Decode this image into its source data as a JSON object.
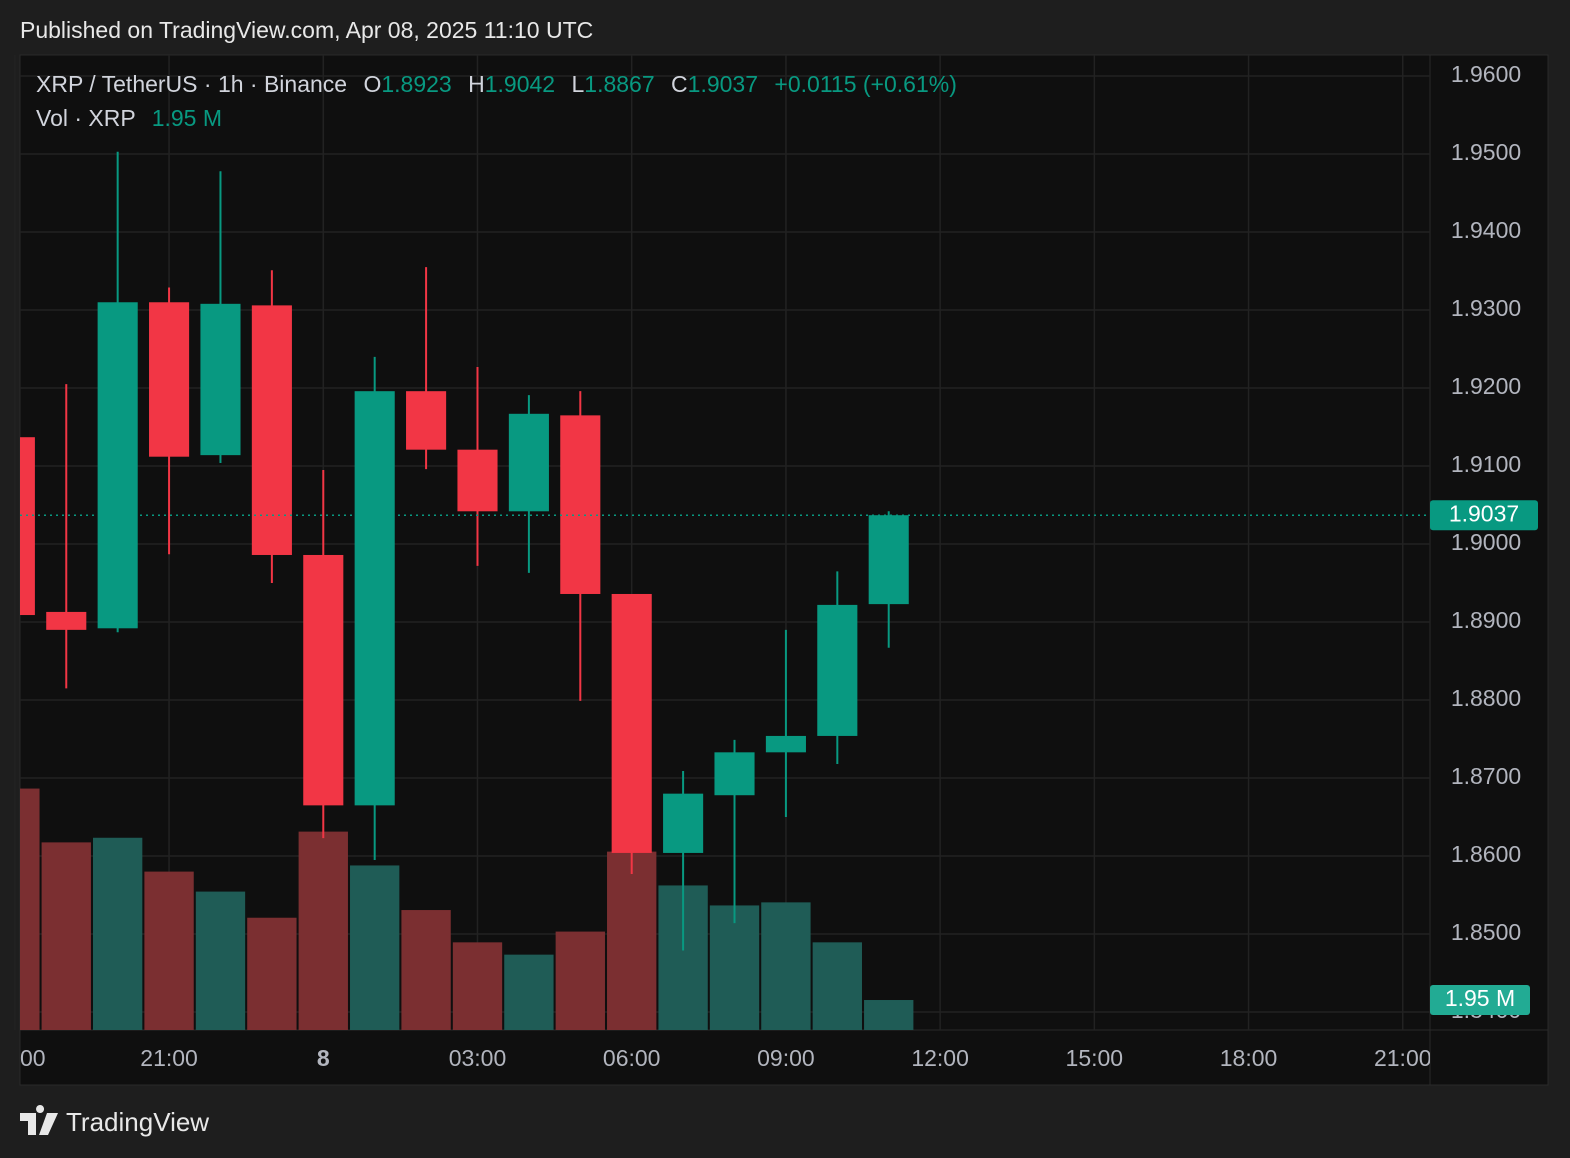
{
  "header": {
    "published": "Published on TradingView.com, Apr 08, 2025 11:10 UTC"
  },
  "footer": {
    "brand": "TradingView"
  },
  "chart_data": {
    "type": "candlestick",
    "symbol": "XRP / TetherUS · 1h · Binance",
    "ohlc_prefixes": [
      "O",
      "H",
      "L",
      "C"
    ],
    "change": "+0.0115 (+0.61%)",
    "volume_title": "Vol · XRP",
    "volume_value_label": "1.95 M",
    "up_color": "#089981",
    "down_color": "#f23645",
    "up_volume_color": "#1f5c56",
    "down_volume_color": "#7b2f31",
    "x": [
      18,
      19,
      20,
      21,
      22,
      23,
      24,
      25,
      26,
      27,
      28,
      29,
      30,
      31,
      32,
      33,
      34,
      35
    ],
    "open": [
      1.9137,
      1.8913,
      1.8892,
      1.931,
      1.9114,
      1.9306,
      1.8986,
      1.8665,
      1.9196,
      1.9121,
      1.9042,
      1.9165,
      1.8936,
      1.8604,
      1.8678,
      1.8733,
      1.8754,
      1.8923
    ],
    "high": [
      1.9137,
      1.9205,
      1.9503,
      1.9329,
      1.9478,
      1.9351,
      1.9095,
      1.924,
      1.9355,
      1.9227,
      1.9191,
      1.9196,
      1.8936,
      1.8709,
      1.8749,
      1.889,
      1.8965,
      1.9042
    ],
    "low": [
      1.8909,
      1.8815,
      1.8887,
      1.8987,
      1.9104,
      1.895,
      1.8623,
      1.8595,
      1.9096,
      1.8972,
      1.8963,
      1.8799,
      1.8577,
      1.8479,
      1.8514,
      1.865,
      1.8718,
      1.8867
    ],
    "close": [
      1.8909,
      1.889,
      1.931,
      1.9112,
      1.9308,
      1.8986,
      1.8665,
      1.9196,
      1.9121,
      1.9042,
      1.9167,
      1.8936,
      1.8604,
      1.868,
      1.8733,
      1.8754,
      1.8922,
      1.9037
    ],
    "volume": [
      15.7,
      12.2,
      12.5,
      10.3,
      9.0,
      7.3,
      12.9,
      10.7,
      7.8,
      5.7,
      4.9,
      6.4,
      11.6,
      9.4,
      8.1,
      8.3,
      5.7,
      1.95
    ],
    "xlim": [
      18.1,
      45.53
    ],
    "xticks": [
      {
        "value": 18,
        "label": "00"
      },
      {
        "value": 21,
        "label": "21:00"
      },
      {
        "value": 24,
        "label": "8"
      },
      {
        "value": 27,
        "label": "03:00"
      },
      {
        "value": 30,
        "label": "06:00"
      },
      {
        "value": 33,
        "label": "09:00"
      },
      {
        "value": 36,
        "label": "12:00"
      },
      {
        "value": 39,
        "label": "15:00"
      },
      {
        "value": 42,
        "label": "18:00"
      },
      {
        "value": 45,
        "label": "21:00"
      }
    ],
    "ylim": [
      1.8377,
      1.9627
    ],
    "yticks": [
      {
        "value": 1.96,
        "label": "1.9600"
      },
      {
        "value": 1.95,
        "label": "1.9500"
      },
      {
        "value": 1.94,
        "label": "1.9400"
      },
      {
        "value": 1.93,
        "label": "1.9300"
      },
      {
        "value": 1.92,
        "label": "1.9200"
      },
      {
        "value": 1.91,
        "label": "1.9100"
      },
      {
        "value": 1.9,
        "label": "1.9000"
      },
      {
        "value": 1.89,
        "label": "1.8900"
      },
      {
        "value": 1.88,
        "label": "1.8800"
      },
      {
        "value": 1.87,
        "label": "1.8700"
      },
      {
        "value": 1.86,
        "label": "1.8600"
      },
      {
        "value": 1.85,
        "label": "1.8500"
      },
      {
        "value": 1.84,
        "label": "1.8400"
      }
    ],
    "volume_lim": [
      0,
      63.4
    ],
    "grid": true
  }
}
